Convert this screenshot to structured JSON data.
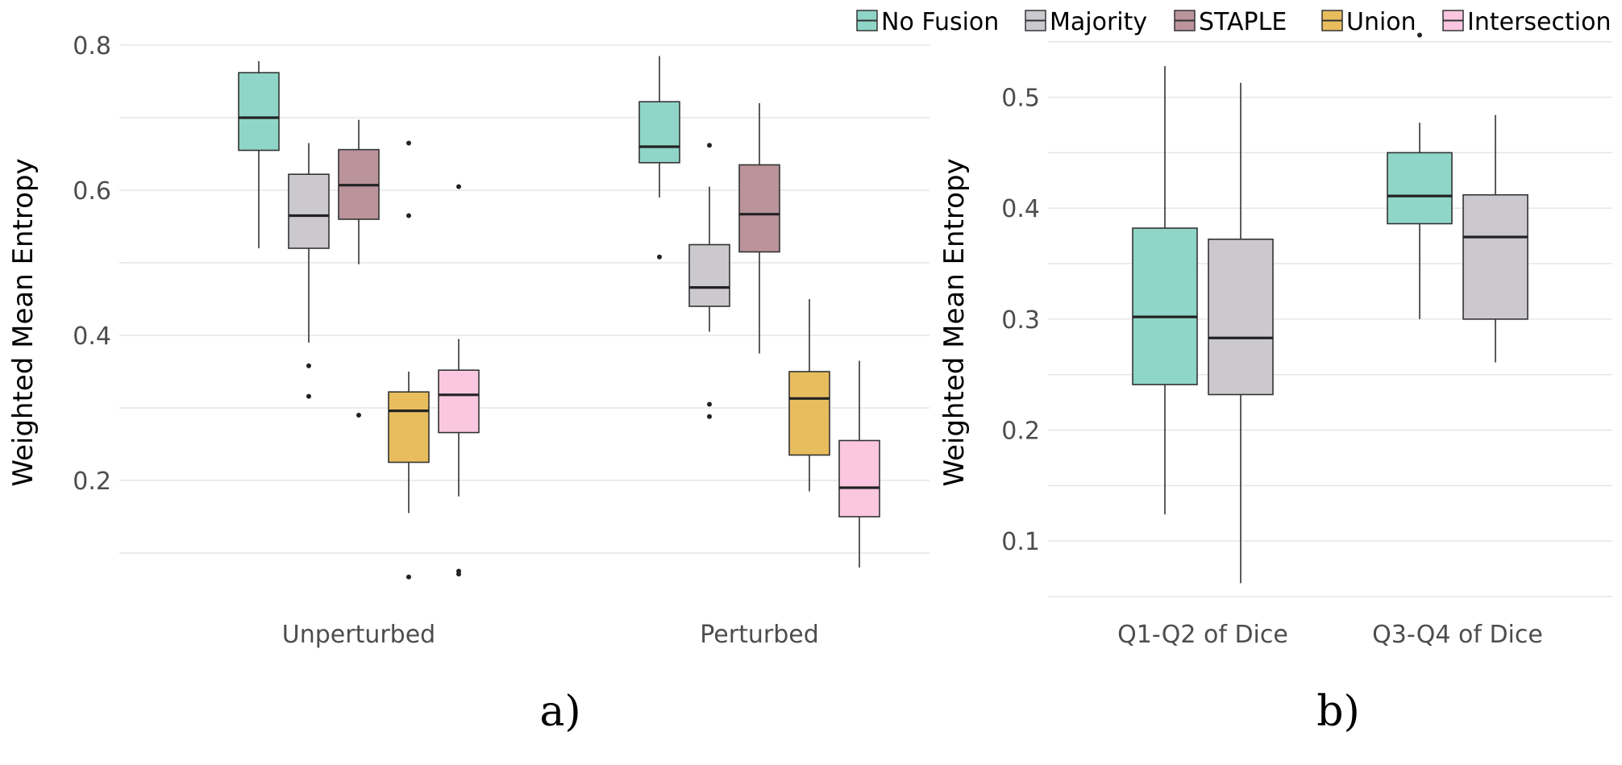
{
  "legend": {
    "items": [
      {
        "name": "No Fusion",
        "color": "#8fd6c8"
      },
      {
        "name": "Majority",
        "color": "#cbc9ce"
      },
      {
        "name": "STAPLE",
        "color": "#ba939b"
      },
      {
        "name": "Union",
        "color": "#e8bd5e"
      },
      {
        "name": "Intersection",
        "color": "#fbc7e0"
      }
    ]
  },
  "chart_data": [
    {
      "type": "box",
      "panel_label": "a)",
      "ylabel": "Weighted Mean Entropy",
      "xlabel": "",
      "ylim": [
        0.04,
        0.82
      ],
      "yticks": [
        0.2,
        0.4,
        0.6,
        0.8
      ],
      "yticklabels": [
        "0.2",
        "0.4",
        "0.6",
        "0.8"
      ],
      "grid": true,
      "categories": [
        "Unperturbed",
        "Perturbed"
      ],
      "series": [
        {
          "name": "No Fusion",
          "boxes": [
            {
              "min": 0.52,
              "q1": 0.655,
              "median": 0.7,
              "q3": 0.762,
              "max": 0.778,
              "outliers": []
            },
            {
              "min": 0.59,
              "q1": 0.638,
              "median": 0.66,
              "q3": 0.722,
              "max": 0.785,
              "outliers": [
                0.508
              ]
            }
          ]
        },
        {
          "name": "Majority",
          "boxes": [
            {
              "min": 0.39,
              "q1": 0.52,
              "median": 0.565,
              "q3": 0.622,
              "max": 0.665,
              "outliers": [
                0.358,
                0.316
              ]
            },
            {
              "min": 0.405,
              "q1": 0.44,
              "median": 0.466,
              "q3": 0.525,
              "max": 0.605,
              "outliers": [
                0.662,
                0.305,
                0.288
              ]
            }
          ]
        },
        {
          "name": "STAPLE",
          "boxes": [
            {
              "min": 0.498,
              "q1": 0.56,
              "median": 0.607,
              "q3": 0.656,
              "max": 0.697,
              "outliers": [
                0.29
              ]
            },
            {
              "min": 0.375,
              "q1": 0.515,
              "median": 0.567,
              "q3": 0.635,
              "max": 0.72,
              "outliers": []
            }
          ]
        },
        {
          "name": "Union",
          "boxes": [
            {
              "min": 0.155,
              "q1": 0.225,
              "median": 0.296,
              "q3": 0.322,
              "max": 0.35,
              "outliers": [
                0.665,
                0.565,
                0.067
              ]
            },
            {
              "min": 0.185,
              "q1": 0.235,
              "median": 0.313,
              "q3": 0.35,
              "max": 0.45,
              "outliers": []
            }
          ]
        },
        {
          "name": "Intersection",
          "boxes": [
            {
              "min": 0.178,
              "q1": 0.266,
              "median": 0.318,
              "q3": 0.352,
              "max": 0.395,
              "outliers": [
                0.605,
                0.075,
                0.071
              ]
            },
            {
              "min": 0.08,
              "q1": 0.15,
              "median": 0.19,
              "q3": 0.255,
              "max": 0.365,
              "outliers": []
            }
          ]
        }
      ]
    },
    {
      "type": "box",
      "panel_label": "b)",
      "ylabel": "Weighted Mean Entropy",
      "xlabel": "",
      "ylim": [
        0.05,
        0.56
      ],
      "yticks": [
        0.1,
        0.2,
        0.3,
        0.4,
        0.5
      ],
      "yticklabels": [
        "0.1",
        "0.2",
        "0.3",
        "0.4",
        "0.5"
      ],
      "grid": true,
      "categories": [
        "Q1-Q2 of Dice",
        "Q3-Q4 of Dice"
      ],
      "series": [
        {
          "name": "No Fusion",
          "boxes": [
            {
              "min": 0.124,
              "q1": 0.241,
              "median": 0.302,
              "q3": 0.382,
              "max": 0.528,
              "outliers": []
            },
            {
              "min": 0.3,
              "q1": 0.386,
              "median": 0.411,
              "q3": 0.45,
              "max": 0.477,
              "outliers": [
                0.556
              ]
            }
          ]
        },
        {
          "name": "Majority",
          "boxes": [
            {
              "min": 0.062,
              "q1": 0.232,
              "median": 0.283,
              "q3": 0.372,
              "max": 0.513,
              "outliers": []
            },
            {
              "min": 0.261,
              "q1": 0.3,
              "median": 0.374,
              "q3": 0.412,
              "max": 0.484,
              "outliers": []
            }
          ]
        }
      ]
    }
  ]
}
